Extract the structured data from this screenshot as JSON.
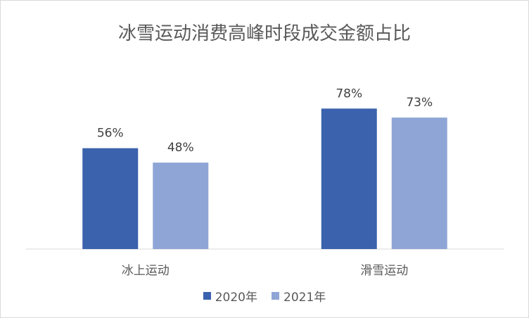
{
  "chart_data": {
    "type": "bar",
    "title": "冰雪运动消费高峰时段成交金额占比",
    "categories": [
      "冰上运动",
      "滑雪运动"
    ],
    "series": [
      {
        "name": "2020年",
        "values": [
          56,
          78
        ],
        "labels": [
          "56%",
          "78%"
        ],
        "color": "#3a62ad"
      },
      {
        "name": "2021年",
        "values": [
          48,
          73
        ],
        "labels": [
          "48%",
          "73%"
        ],
        "color": "#8fa5d6"
      }
    ],
    "ylim": [
      0,
      100
    ],
    "grid": false,
    "legend": "bottom"
  }
}
